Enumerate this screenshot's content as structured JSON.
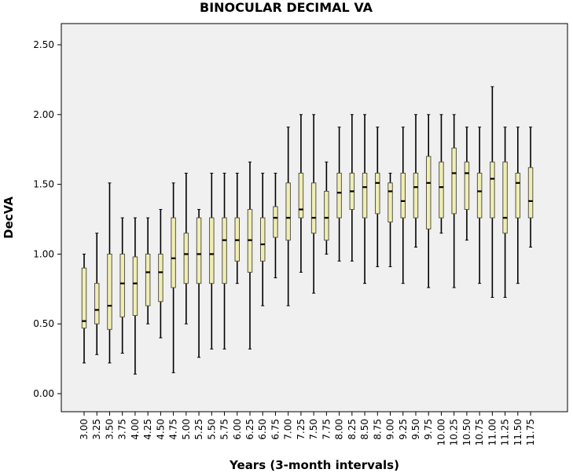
{
  "chart_data": {
    "type": "boxplot",
    "title": "BINOCULAR DECIMAL VA",
    "xlabel": "Years (3-month intervals)",
    "ylabel": "DecVA",
    "ylim": [
      0,
      2.5
    ],
    "yticks": [
      "0.00",
      "0.50",
      "1.00",
      "1.50",
      "2.00",
      "2.50"
    ],
    "grid": false,
    "colors": {
      "plot_bg": "#f0f0f0",
      "box_fill": "#f0eeb2",
      "box_stroke": "#55554a",
      "whisker": "#000000",
      "median": "#000000"
    },
    "categories": [
      "3.00",
      "3.25",
      "3.50",
      "3.75",
      "4.00",
      "4.25",
      "4.50",
      "4.75",
      "5.00",
      "5.25",
      "5.50",
      "5.75",
      "6.00",
      "6.25",
      "6.50",
      "6.75",
      "7.00",
      "7.25",
      "7.50",
      "7.75",
      "8.00",
      "8.25",
      "8.50",
      "8.75",
      "9.00",
      "9.25",
      "9.50",
      "9.75",
      "10.00",
      "10.25",
      "10.50",
      "10.75",
      "11.00",
      "11.25",
      "11.50",
      "11.75"
    ],
    "boxes": [
      {
        "min": 0.22,
        "q1": 0.47,
        "median": 0.52,
        "q3": 0.9,
        "max": 1.0
      },
      {
        "min": 0.28,
        "q1": 0.5,
        "median": 0.6,
        "q3": 0.79,
        "max": 1.15
      },
      {
        "min": 0.22,
        "q1": 0.46,
        "median": 0.63,
        "q3": 1.0,
        "max": 1.51
      },
      {
        "min": 0.29,
        "q1": 0.55,
        "median": 0.79,
        "q3": 1.0,
        "max": 1.26
      },
      {
        "min": 0.14,
        "q1": 0.56,
        "median": 0.79,
        "q3": 0.98,
        "max": 1.26
      },
      {
        "min": 0.5,
        "q1": 0.63,
        "median": 0.87,
        "q3": 1.0,
        "max": 1.26
      },
      {
        "min": 0.4,
        "q1": 0.66,
        "median": 0.87,
        "q3": 1.0,
        "max": 1.32
      },
      {
        "min": 0.15,
        "q1": 0.76,
        "median": 0.97,
        "q3": 1.26,
        "max": 1.51
      },
      {
        "min": 0.5,
        "q1": 0.79,
        "median": 1.0,
        "q3": 1.15,
        "max": 1.58
      },
      {
        "min": 0.26,
        "q1": 0.79,
        "median": 1.0,
        "q3": 1.26,
        "max": 1.32
      },
      {
        "min": 0.32,
        "q1": 0.79,
        "median": 1.0,
        "q3": 1.26,
        "max": 1.58
      },
      {
        "min": 0.32,
        "q1": 0.79,
        "median": 1.1,
        "q3": 1.26,
        "max": 1.58
      },
      {
        "min": 0.79,
        "q1": 0.95,
        "median": 1.1,
        "q3": 1.26,
        "max": 1.58
      },
      {
        "min": 0.32,
        "q1": 0.87,
        "median": 1.1,
        "q3": 1.32,
        "max": 1.66
      },
      {
        "min": 0.63,
        "q1": 0.95,
        "median": 1.07,
        "q3": 1.26,
        "max": 1.58
      },
      {
        "min": 0.83,
        "q1": 1.12,
        "median": 1.26,
        "q3": 1.34,
        "max": 1.58
      },
      {
        "min": 0.63,
        "q1": 1.1,
        "median": 1.26,
        "q3": 1.51,
        "max": 1.91
      },
      {
        "min": 0.87,
        "q1": 1.26,
        "median": 1.32,
        "q3": 1.58,
        "max": 2.0
      },
      {
        "min": 0.72,
        "q1": 1.15,
        "median": 1.26,
        "q3": 1.51,
        "max": 2.0
      },
      {
        "min": 1.0,
        "q1": 1.1,
        "median": 1.26,
        "q3": 1.45,
        "max": 1.66
      },
      {
        "min": 0.95,
        "q1": 1.26,
        "median": 1.44,
        "q3": 1.58,
        "max": 1.91
      },
      {
        "min": 0.95,
        "q1": 1.32,
        "median": 1.45,
        "q3": 1.58,
        "max": 2.0
      },
      {
        "min": 0.79,
        "q1": 1.26,
        "median": 1.48,
        "q3": 1.58,
        "max": 2.0
      },
      {
        "min": 0.91,
        "q1": 1.29,
        "median": 1.51,
        "q3": 1.58,
        "max": 1.91
      },
      {
        "min": 0.91,
        "q1": 1.23,
        "median": 1.45,
        "q3": 1.51,
        "max": 1.58
      },
      {
        "min": 0.79,
        "q1": 1.26,
        "median": 1.38,
        "q3": 1.58,
        "max": 1.91
      },
      {
        "min": 1.05,
        "q1": 1.26,
        "median": 1.48,
        "q3": 1.58,
        "max": 2.0
      },
      {
        "min": 0.76,
        "q1": 1.18,
        "median": 1.51,
        "q3": 1.7,
        "max": 2.0
      },
      {
        "min": 1.15,
        "q1": 1.26,
        "median": 1.48,
        "q3": 1.66,
        "max": 2.0
      },
      {
        "min": 0.76,
        "q1": 1.29,
        "median": 1.58,
        "q3": 1.76,
        "max": 2.0
      },
      {
        "min": 1.1,
        "q1": 1.32,
        "median": 1.58,
        "q3": 1.66,
        "max": 1.91
      },
      {
        "min": 0.79,
        "q1": 1.26,
        "median": 1.45,
        "q3": 1.58,
        "max": 1.91
      },
      {
        "min": 0.69,
        "q1": 1.26,
        "median": 1.54,
        "q3": 1.66,
        "max": 2.2
      },
      {
        "min": 0.69,
        "q1": 1.15,
        "median": 1.26,
        "q3": 1.66,
        "max": 1.91
      },
      {
        "min": 0.79,
        "q1": 1.26,
        "median": 1.51,
        "q3": 1.58,
        "max": 1.91
      },
      {
        "min": 1.05,
        "q1": 1.26,
        "median": 1.38,
        "q3": 1.62,
        "max": 1.91
      }
    ]
  }
}
